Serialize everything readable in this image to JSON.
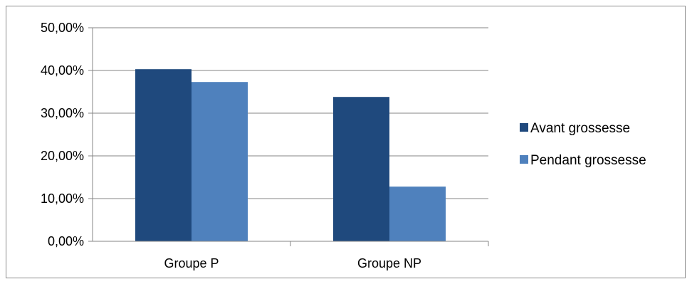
{
  "chart_data": {
    "type": "bar",
    "categories": [
      "Groupe P",
      "Groupe NP"
    ],
    "series": [
      {
        "name": "Avant grossesse",
        "values": [
          40.3,
          33.8
        ],
        "color": "#1f497d"
      },
      {
        "name": "Pendant grossesse",
        "values": [
          37.3,
          12.8
        ],
        "color": "#4f81bd"
      }
    ],
    "yticks": [
      "0,00%",
      "10,00%",
      "20,00%",
      "30,00%",
      "40,00%",
      "50,00%"
    ],
    "ylim": [
      0,
      50
    ],
    "grid": true,
    "legend_position": "right",
    "title": "",
    "xlabel": "",
    "ylabel": ""
  }
}
